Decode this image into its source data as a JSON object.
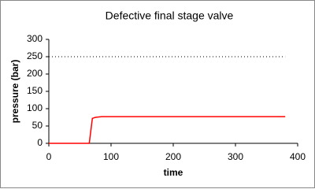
{
  "chart_data": {
    "type": "line",
    "title": "Defective final stage valve",
    "x_label": "time",
    "y_label": "pressure (bar)",
    "xlim": [
      0,
      400
    ],
    "xticks": [
      0,
      100,
      200,
      300,
      400
    ],
    "ylim": [
      0,
      300
    ],
    "yticks": [
      0,
      50,
      100,
      150,
      200,
      250,
      300
    ],
    "series": [
      {
        "color": "#ff0000",
        "dash": "solid",
        "x": [
          0,
          65,
          70,
          75,
          85,
          380
        ],
        "values": [
          0,
          0,
          72,
          75,
          77,
          77
        ]
      },
      {
        "color": "#000000",
        "dash": "dotted",
        "x": [
          0,
          380
        ],
        "values": [
          250,
          250
        ]
      }
    ]
  }
}
